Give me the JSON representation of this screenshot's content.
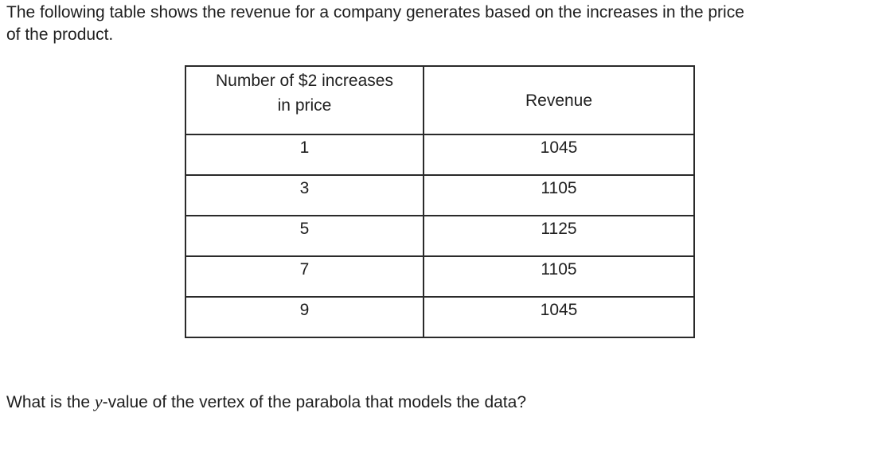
{
  "intro": {
    "line1": "The following table shows the revenue for a company generates based on the increases in the price",
    "line2": "of the product."
  },
  "table": {
    "headers": {
      "col1_line1": "Number of $2 increases",
      "col1_line2": "in price",
      "col2": "Revenue"
    },
    "rows": [
      {
        "increases": "1",
        "revenue": "1045"
      },
      {
        "increases": "3",
        "revenue": "1105"
      },
      {
        "increases": "5",
        "revenue": "1125"
      },
      {
        "increases": "7",
        "revenue": "1105"
      },
      {
        "increases": "9",
        "revenue": "1045"
      }
    ]
  },
  "question": {
    "before": "What is the ",
    "variable": "y",
    "after": "-value of the vertex of the parabola that models the data?"
  }
}
